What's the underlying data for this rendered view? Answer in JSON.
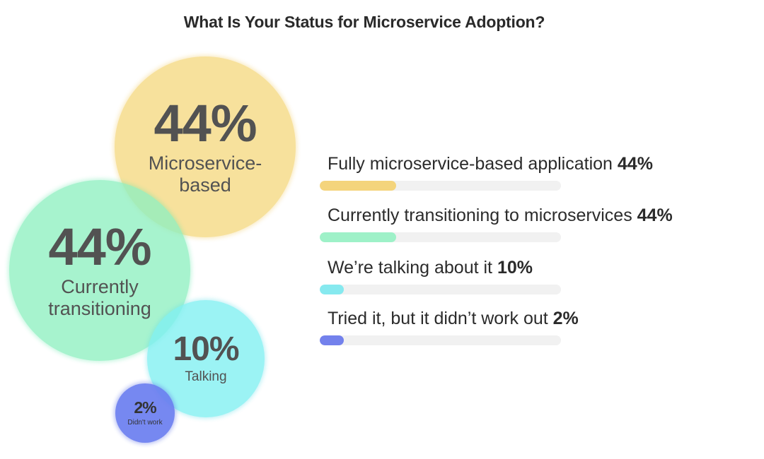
{
  "chart_data": {
    "type": "bubble-bar",
    "title": "What Is Your Status for Microservice Adoption?",
    "categories": [
      {
        "name": "Fully microservice-based application",
        "value": 44,
        "value_label": "44%",
        "bubble_label": "Microservice-\nbased",
        "color": "#f6d981",
        "bar_color": "#f4d47c"
      },
      {
        "name": "Currently transitioning to microservices",
        "value": 44,
        "value_label": "44%",
        "bubble_label": "Currently\ntransitioning",
        "color": "#8ff0c1",
        "bar_color": "#9ef1c8"
      },
      {
        "name": "We’re talking about it",
        "value": 10,
        "value_label": "10%",
        "bubble_label": "Talking",
        "color": "#7ff0f2",
        "bar_color": "#86e9ef"
      },
      {
        "name": "Tried it, but it didn’t work out",
        "value": 2,
        "value_label": "2%",
        "bubble_label": "Didn't work",
        "color": "#6b7ef0",
        "bar_color": "#7381ec"
      }
    ]
  }
}
